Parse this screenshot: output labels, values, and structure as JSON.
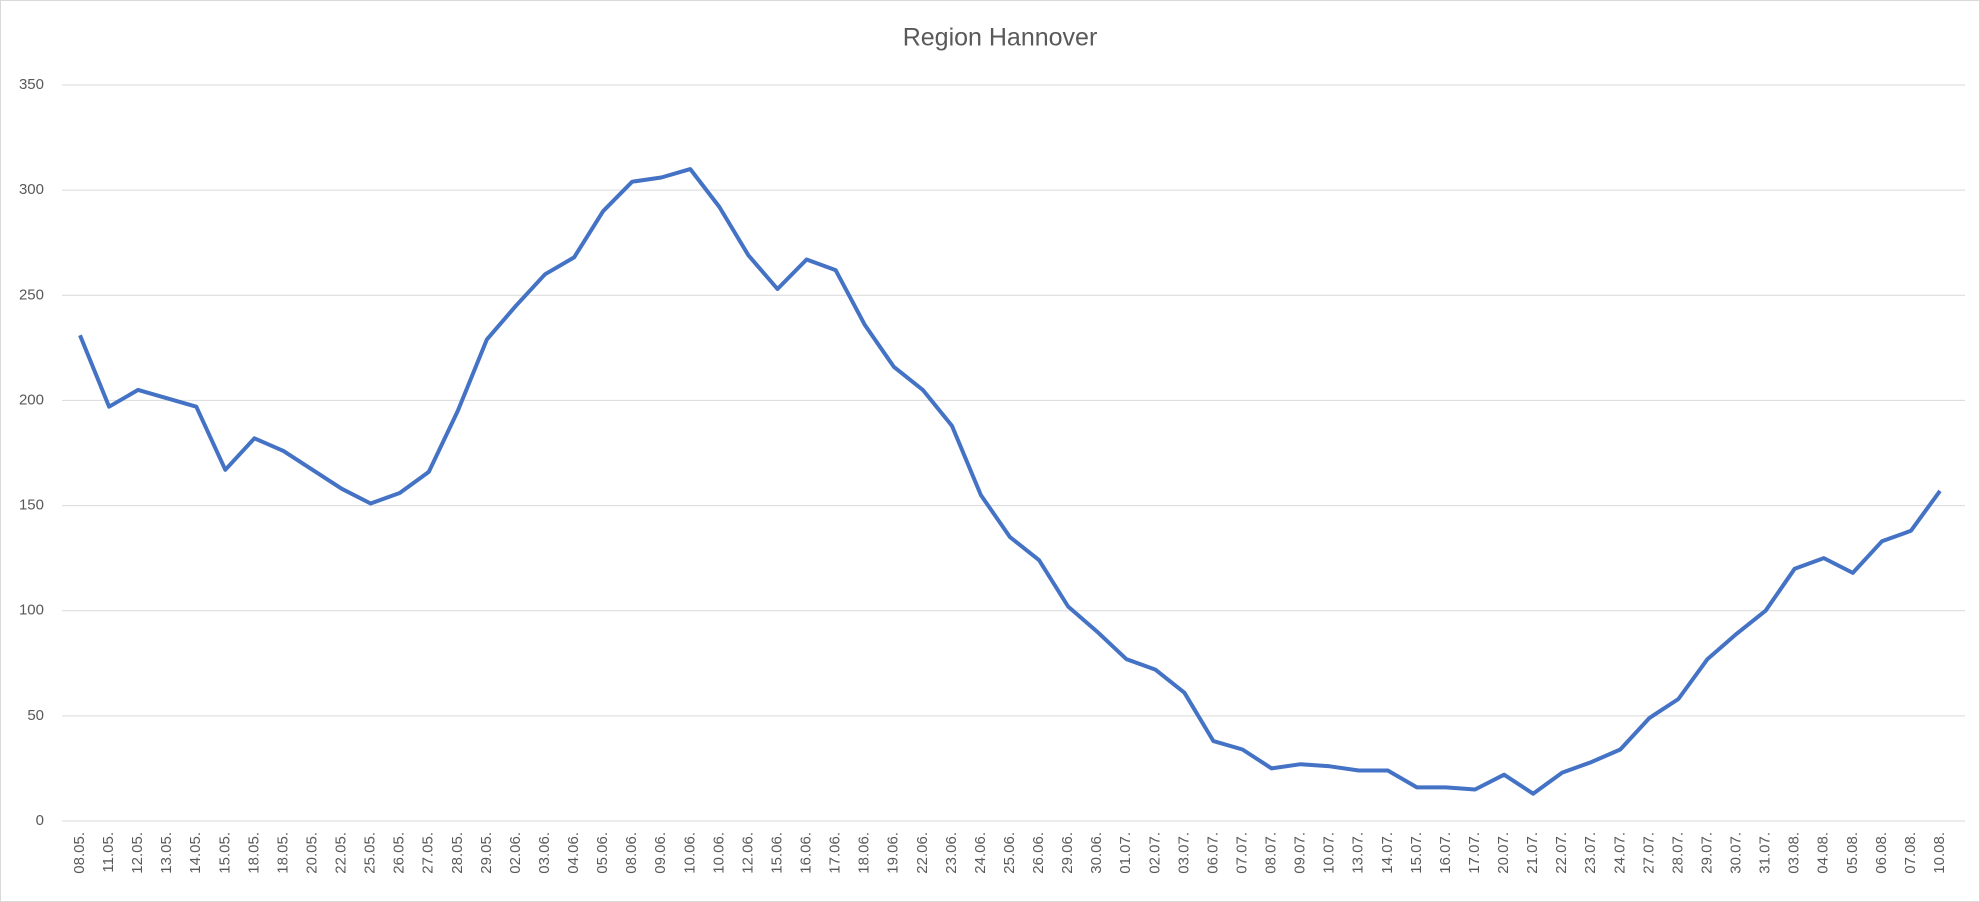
{
  "chart_data": {
    "type": "line",
    "title": "Region Hannover",
    "categories": [
      "08.05.",
      "11.05.",
      "12.05.",
      "13.05.",
      "14.05.",
      "15.05.",
      "18.05.",
      "18.05.",
      "20.05.",
      "22.05.",
      "25.05.",
      "26.05.",
      "27.05.",
      "28.05.",
      "29.05.",
      "02.06.",
      "03.06.",
      "04.06.",
      "05.06.",
      "08.06.",
      "09.06.",
      "10.06.",
      "10.06.",
      "12.06.",
      "15.06.",
      "16.06.",
      "17.06.",
      "18.06.",
      "19.06.",
      "22.06.",
      "23.06.",
      "24.06.",
      "25.06.",
      "26.06.",
      "29.06.",
      "30.06.",
      "01.07.",
      "02.07.",
      "03.07.",
      "06.07.",
      "07.07.",
      "08.07.",
      "09.07.",
      "10.07.",
      "13.07.",
      "14.07.",
      "15.07.",
      "16.07.",
      "17.07.",
      "20.07.",
      "21.07.",
      "22.07.",
      "23.07.",
      "24.07.",
      "27.07.",
      "28.07.",
      "29.07.",
      "30.07.",
      "31.07.",
      "03.08.",
      "04.08.",
      "05.08.",
      "06.08.",
      "07.08.",
      "10.08."
    ],
    "series": [
      {
        "color": "#4472c4",
        "values": [
          231,
          197,
          205,
          201,
          197,
          167,
          182,
          176,
          167,
          158,
          151,
          156,
          166,
          195,
          229,
          245,
          260,
          268,
          290,
          304,
          306,
          310,
          292,
          269,
          253,
          267,
          262,
          236,
          216,
          205,
          188,
          155,
          135,
          124,
          102,
          90,
          77,
          72,
          61,
          38,
          34,
          25,
          27,
          26,
          24,
          24,
          16,
          16,
          15,
          22,
          13,
          23,
          28,
          34,
          49,
          58,
          77,
          89,
          100,
          120,
          125,
          118,
          133,
          138,
          157
        ]
      }
    ],
    "ylim": [
      0,
      350
    ],
    "yticks": [
      0,
      50,
      100,
      150,
      200,
      250,
      300,
      350
    ],
    "grid": true
  }
}
